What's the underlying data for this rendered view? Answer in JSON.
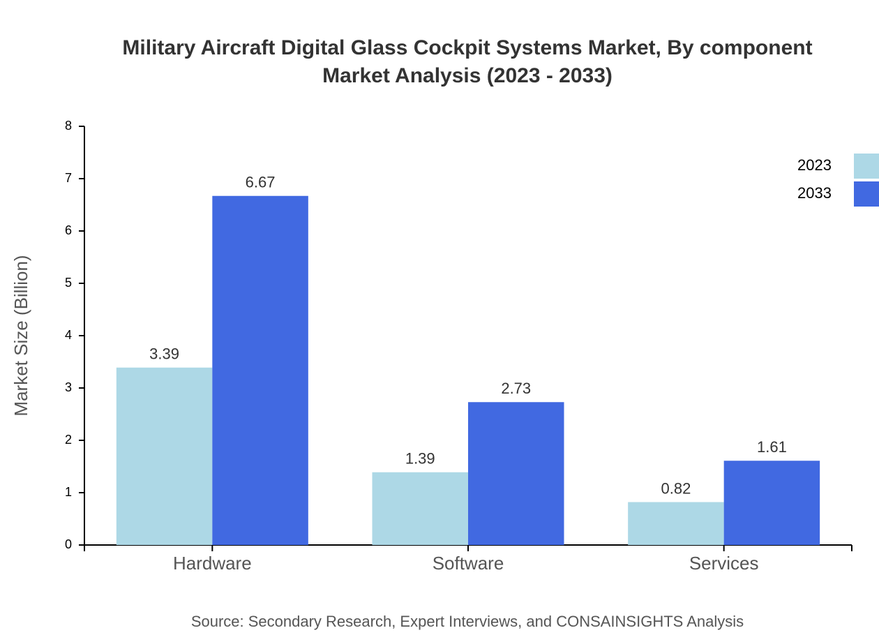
{
  "chart_data": {
    "type": "bar",
    "title": [
      "Military Aircraft Digital Glass Cockpit Systems Market, By component",
      "Market Analysis (2023 - 2033)"
    ],
    "y_label": "Market Size (Billion)",
    "source": "Source: Secondary Research, Expert Interviews, and CONSAINSIGHTS Analysis",
    "categories": [
      "Hardware",
      "Software",
      "Services"
    ],
    "series": [
      {
        "name": "2023",
        "color": "#add8e6",
        "values": [
          3.39,
          1.39,
          0.82
        ]
      },
      {
        "name": "2033",
        "color": "#4169e1",
        "values": [
          6.67,
          2.73,
          1.61
        ]
      }
    ],
    "ylim": [
      0,
      8
    ],
    "yticks": [
      0,
      1,
      2,
      3,
      4,
      5,
      6,
      7,
      8
    ],
    "legend": "top-right"
  }
}
